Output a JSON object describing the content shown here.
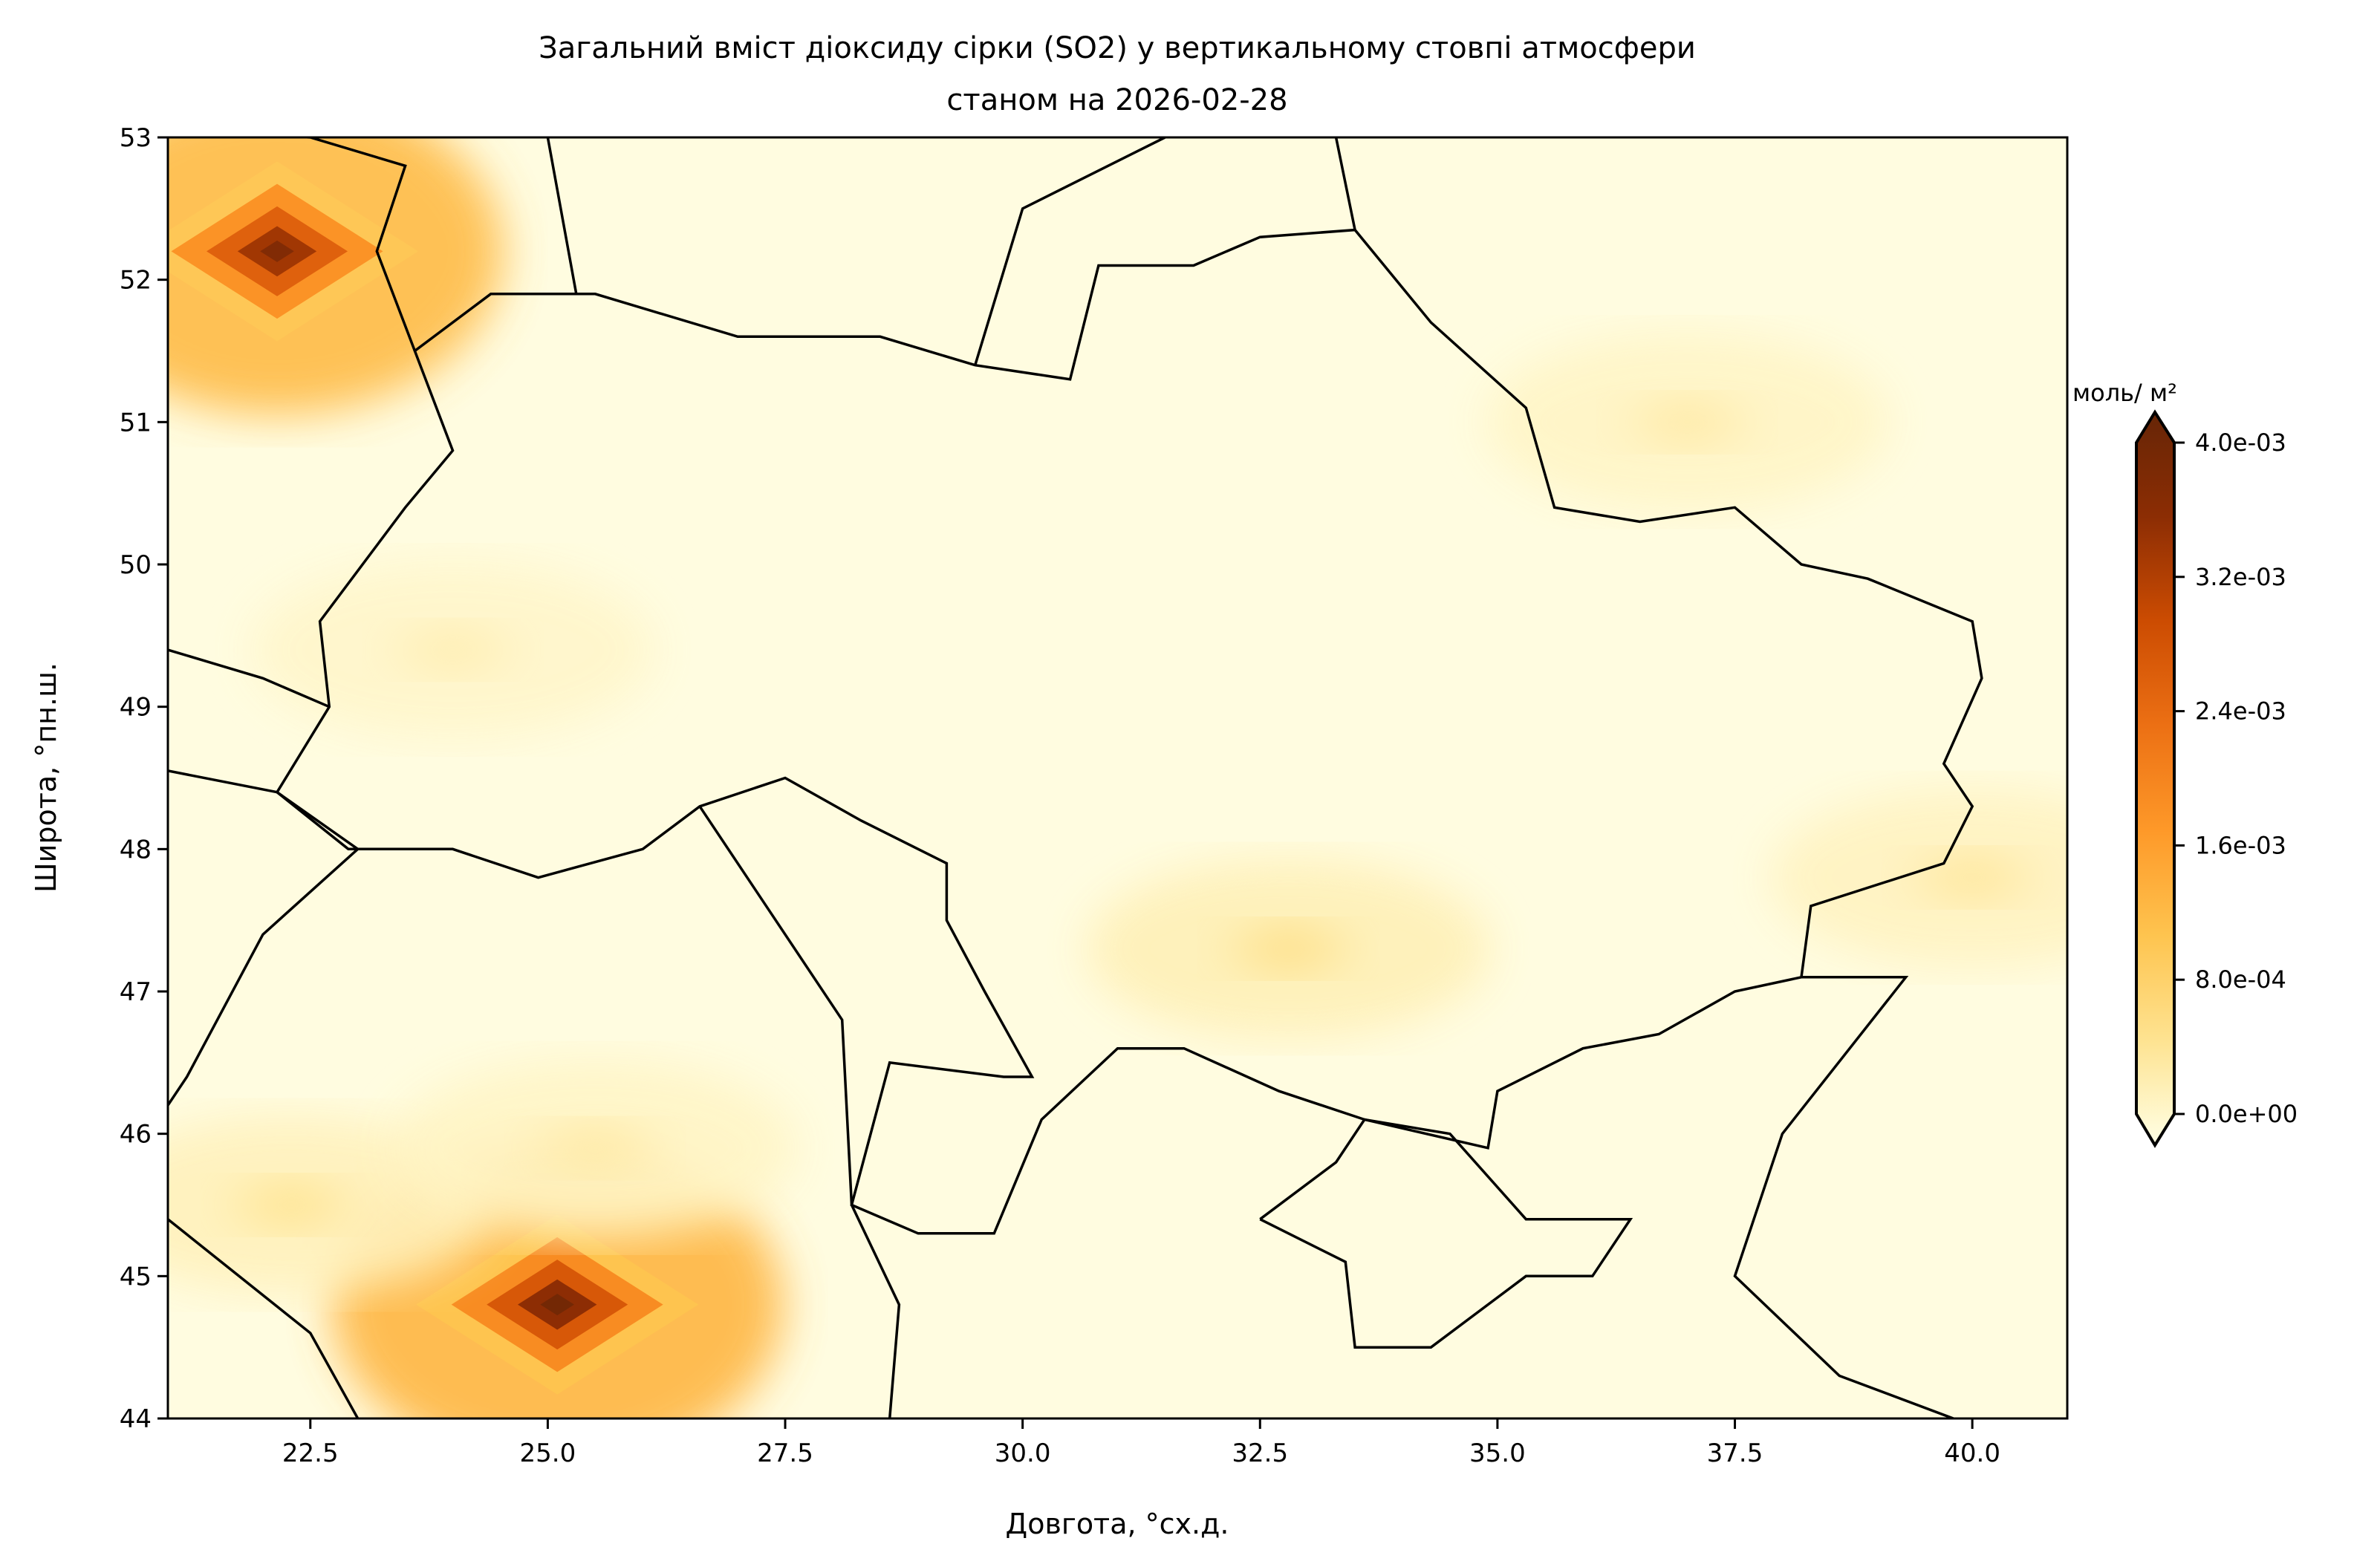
{
  "title_line1": "Загальний вміст діоксиду сірки (SO2) у вертикальному стовпі атмосфери",
  "title_line2": "станом на 2026-02-28",
  "chart_data": {
    "type": "heatmap",
    "xlabel": "Довгота, °сх.д.",
    "ylabel": "Широта, °пн.ш.",
    "xlim": [
      21,
      41
    ],
    "ylim": [
      44,
      53
    ],
    "x_ticks": [
      "22.5",
      "25.0",
      "27.5",
      "30.0",
      "32.5",
      "35.0",
      "37.5",
      "40.0"
    ],
    "y_ticks": [
      "44",
      "45",
      "46",
      "47",
      "48",
      "49",
      "50",
      "51",
      "52",
      "53"
    ],
    "colorbar": {
      "label": "моль/ м²",
      "ticks": [
        "0.0e+00",
        "8.0e-04",
        "1.6e-03",
        "2.4e-03",
        "3.2e-03",
        "4.0e-03"
      ],
      "range": [
        0,
        0.004
      ],
      "extend": "both",
      "colors": [
        "#ffffe5",
        "#fee391",
        "#fec44f",
        "#fe9929",
        "#ec7014",
        "#cc4c02",
        "#8c2d04",
        "#662506"
      ]
    },
    "hotspots": [
      {
        "lon": 22.15,
        "lat": 52.2,
        "value": 0.0036
      },
      {
        "lon": 25.1,
        "lat": 44.8,
        "value": 0.0038
      },
      {
        "lon": 32.8,
        "lat": 47.3,
        "value": 0.0009
      },
      {
        "lon": 22.3,
        "lat": 45.5,
        "value": 0.0008
      },
      {
        "lon": 25.5,
        "lat": 45.9,
        "value": 0.0006
      },
      {
        "lon": 37.0,
        "lat": 51.0,
        "value": 0.0006
      },
      {
        "lon": 40.0,
        "lat": 47.8,
        "value": 0.0007
      },
      {
        "lon": 24.0,
        "lat": 49.4,
        "value": 0.0005
      }
    ]
  }
}
